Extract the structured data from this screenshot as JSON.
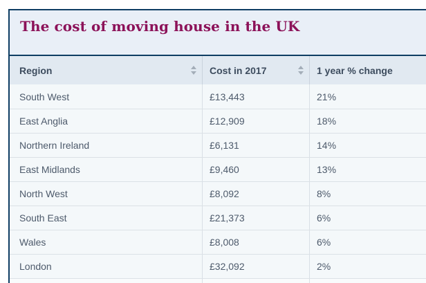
{
  "page": {
    "title": "The cost of moving house in the UK"
  },
  "table": {
    "headers": [
      {
        "label": "Region",
        "sort_icon_visible": true
      },
      {
        "label": "Cost in 2017",
        "sort_icon_visible": true
      },
      {
        "label": "1 year % change",
        "sort_icon_visible": false
      }
    ],
    "rows": [
      [
        "South West",
        "£13,443",
        "21%"
      ],
      [
        "East Anglia",
        "£12,909",
        "18%"
      ],
      [
        "Northern Ireland",
        "£6,131",
        "14%"
      ],
      [
        "East Midlands",
        "£9,460",
        "13%"
      ],
      [
        "North West",
        "£8,092",
        "8%"
      ],
      [
        "South East",
        "£21,373",
        "6%"
      ],
      [
        "Wales",
        "£8,008",
        "6%"
      ],
      [
        "London",
        "£32,092",
        "2%"
      ]
    ]
  },
  "chart_data": {
    "type": "table",
    "title": "The cost of moving house in the UK",
    "columns": [
      "Region",
      "Cost in 2017",
      "1 year % change"
    ],
    "rows": [
      [
        "South West",
        "£13,443",
        "21%"
      ],
      [
        "East Anglia",
        "£12,909",
        "18%"
      ],
      [
        "Northern Ireland",
        "£6,131",
        "14%"
      ],
      [
        "East Midlands",
        "£9,460",
        "13%"
      ],
      [
        "North West",
        "£8,092",
        "8%"
      ],
      [
        "South East",
        "£21,373",
        "6%"
      ],
      [
        "Wales",
        "£8,008",
        "6%"
      ],
      [
        "London",
        "£32,092",
        "2%"
      ]
    ],
    "cost_values_gbp": [
      13443,
      12909,
      6131,
      9460,
      8092,
      21373,
      8008,
      32092
    ],
    "change_percent": [
      21,
      18,
      14,
      13,
      8,
      6,
      6,
      2
    ],
    "sort_order": "1 year % change descending"
  },
  "colors": {
    "accent_border": "#0e3d63",
    "title_text": "#8c1259",
    "title_bg": "#e9eff7",
    "header_bg": "#e1e9f1",
    "row_bg": "#f4f8fa",
    "divider": "#d9dfe5",
    "header_text": "#3d4c5e",
    "row_text": "#4d5a6b",
    "sort_arrow": "#a3adb8"
  }
}
